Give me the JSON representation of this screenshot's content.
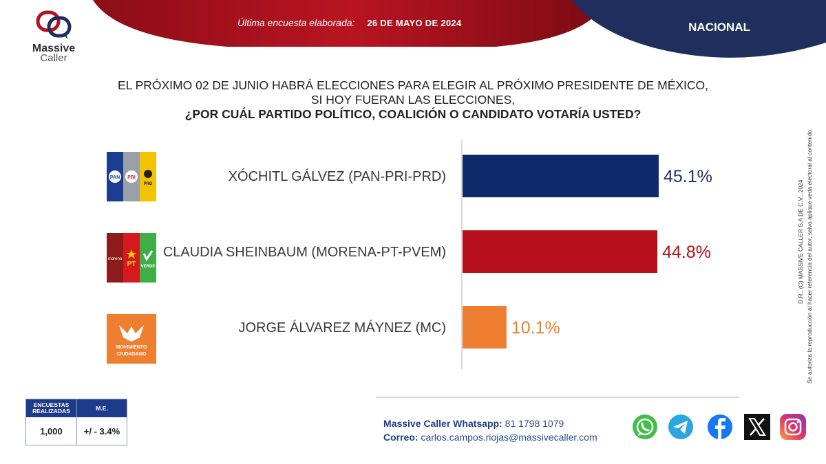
{
  "brand": {
    "name_line1": "Massive",
    "name_line2": "Caller"
  },
  "header": {
    "survey_label": "Última encuesta elaborada:",
    "survey_date": "26 DE MAYO DE 2024",
    "region": "NACIONAL"
  },
  "question": {
    "line1": "EL PRÓXIMO 02 DE JUNIO HABRÁ ELECCIONES PARA ELEGIR AL PRÓXIMO PRESIDENTE DE MÉXICO,",
    "line2": "SI HOY FUERAN LAS ELECCIONES,",
    "line3": "¿POR CUÁL PARTIDO POLÍTICO, COALICIÓN O CANDIDATO VOTARÍA USTED?"
  },
  "chart_data": {
    "type": "bar",
    "orientation": "horizontal",
    "categories": [
      "XÓCHITL GÁLVEZ (PAN-PRI-PRD)",
      "CLAUDIA SHEINBAUM (MORENA-PT-PVEM)",
      "JORGE ÁLVAREZ MÁYNEZ (MC)"
    ],
    "values": [
      45.1,
      44.8,
      10.1
    ],
    "value_labels": [
      "45.1%",
      "44.8%",
      "10.1%"
    ],
    "colors": [
      "#0f2a6b",
      "#b5101c",
      "#ee7f31"
    ],
    "label_colors": [
      "#1c2f66",
      "#b5101c",
      "#ee7f31"
    ],
    "xlim": [
      0,
      50
    ],
    "unit": "%",
    "grid": false,
    "legend": "none"
  },
  "party_logos": {
    "pan": "PAN",
    "pri": "PRI",
    "prd": "PRD",
    "morena": "morena",
    "pt": "PT",
    "verde": "VERDE",
    "mc_line1": "MOVIMIENTO",
    "mc_line2": "CIUDADANO"
  },
  "stats": {
    "head_surveys": "ENCUESTAS REALIZADAS",
    "head_me": "M.E.",
    "surveys": "1,000",
    "me": "+/ - 3.4%"
  },
  "contact": {
    "whatsapp_label": "Massive Caller Whatsapp:",
    "whatsapp_number": "81 1798 1079",
    "email_label": "Correo:",
    "email": "carlos.campos.riojas@massivecaller.com"
  },
  "rights": {
    "line1": "D.R., (C) MASSIVE CALLER S.A DE C.V., 2024",
    "line2": "Se autoriza la reproducción al hacer referencia del autor, salvo aplique veda electoral al contenido."
  },
  "social_icons": [
    "whatsapp-icon",
    "telegram-icon",
    "facebook-icon",
    "x-icon",
    "instagram-icon"
  ],
  "colors": {
    "header_red": "#a3111c",
    "header_navy": "#1f2e5c",
    "accent_blue": "#1e3a8a"
  }
}
